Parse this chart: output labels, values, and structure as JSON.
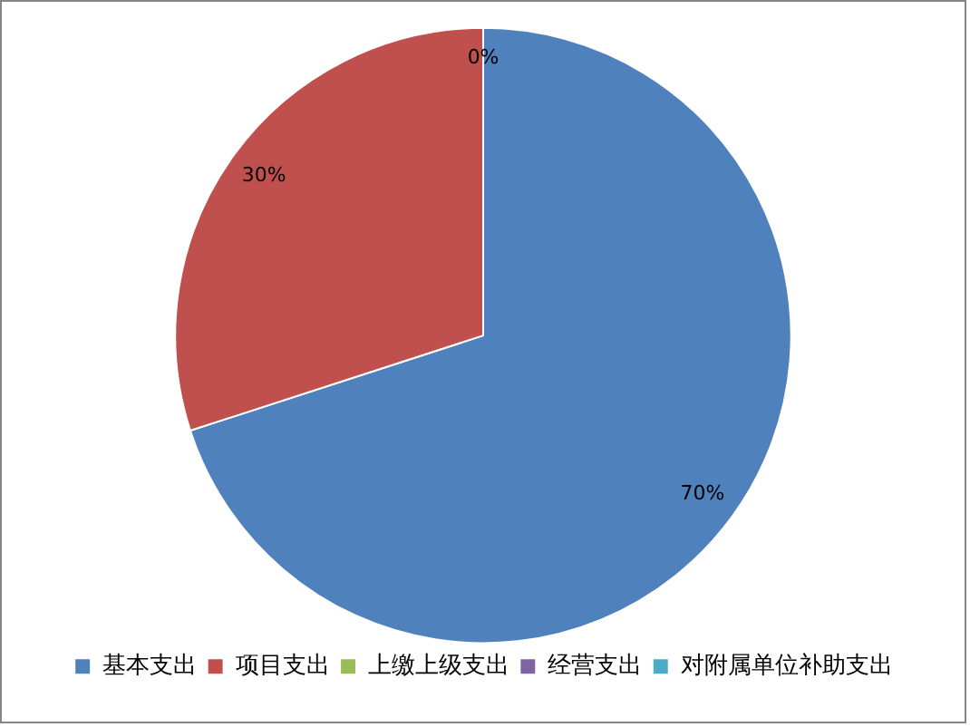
{
  "chart_data": {
    "type": "pie",
    "categories": [
      "基本支出",
      "项目支出",
      "上缴上级支出",
      "经营支出",
      "对附属单位补助支出"
    ],
    "values": [
      70,
      30,
      0,
      0,
      0
    ],
    "colors": [
      "#4f81bd",
      "#c0504d",
      "#9bbb59",
      "#8064a2",
      "#4bacc6"
    ],
    "value_labels": [
      "70%",
      "30%",
      "0%",
      null,
      null
    ],
    "legend": "bottom"
  }
}
